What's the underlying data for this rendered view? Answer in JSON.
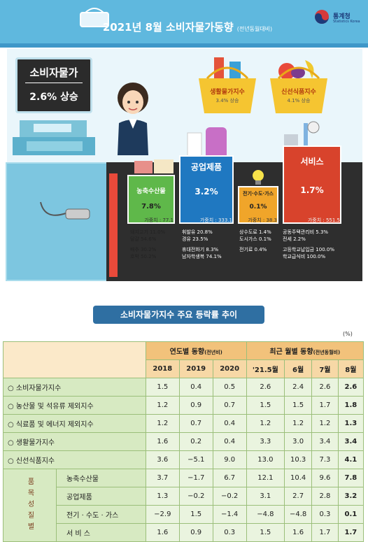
{
  "header": {
    "title": "2021년 8월 소비자물가동향",
    "subtitle": "(전년동월대비)",
    "logo_text": "통계청",
    "logo_sub": "Statistics Korea"
  },
  "cpi": {
    "label": "소비자물가",
    "value": "2.6% 상승"
  },
  "baskets": [
    {
      "label": "생활물가지수",
      "value": "3.4% 상승"
    },
    {
      "label": "신선식품지수",
      "value": "4.1% 상승"
    }
  ],
  "categories": {
    "agri": {
      "title": "농축수산물",
      "value": "7.8%",
      "weight": "가중치 : 77.1",
      "items": [
        "돼지고기 11.0%",
        "달걀 54.6%",
        "배추 30.2%",
        "호박 50.2%"
      ]
    },
    "industrial": {
      "title": "공업제품",
      "value": "3.2%",
      "weight": "가중치 : 333.1",
      "items": [
        "휘발유 20.8%",
        "경유 23.5%",
        "휴대전화기 8.3%",
        "남자학생복 74.1%"
      ]
    },
    "utility": {
      "title": "전기·수도·가스",
      "value": "0.1%",
      "weight": "가중치 : 38.3",
      "items": [
        "상수도료 1.4%",
        "도시가스 0.1%",
        "전기료 0.4%"
      ]
    },
    "service": {
      "title": "서비스",
      "value": "1.7%",
      "weight": "가중치 : 551.5",
      "items": [
        "공동주택관리비 5.3%",
        "전세 2.2%",
        "고등학교납입금 100.0%",
        "학교급식비 100.0%"
      ]
    }
  },
  "section_title": "소비자물가지수 주요 등락률 추이",
  "unit": "(%)",
  "table": {
    "group_header_year": "연도별 동향",
    "group_header_year_note": "(전년비)",
    "group_header_month": "최근 월별 동향",
    "group_header_month_note": "(전년동월비)",
    "columns": [
      "2018",
      "2019",
      "2020",
      "'21.5월",
      "6월",
      "7월",
      "8월"
    ],
    "side_group_label": "품목성질별",
    "rows": [
      {
        "label": "○  소비자물가지수",
        "values": [
          "1.5",
          "0.4",
          "0.5",
          "2.6",
          "2.4",
          "2.6",
          "2.6"
        ]
      },
      {
        "label": "○  농산물 및 석유류 제외지수",
        "values": [
          "1.2",
          "0.9",
          "0.7",
          "1.5",
          "1.5",
          "1.7",
          "1.8"
        ]
      },
      {
        "label": "○  식료품 및 에너지 제외지수",
        "values": [
          "1.2",
          "0.7",
          "0.4",
          "1.2",
          "1.2",
          "1.2",
          "1.3"
        ]
      },
      {
        "label": "○  생활물가지수",
        "values": [
          "1.6",
          "0.2",
          "0.4",
          "3.3",
          "3.0",
          "3.4",
          "3.4"
        ]
      },
      {
        "label": "○  신선식품지수",
        "values": [
          "3.6",
          "−5.1",
          "9.0",
          "13.0",
          "10.3",
          "7.3",
          "4.1"
        ]
      },
      {
        "label": "농축수산물",
        "values": [
          "3.7",
          "−1.7",
          "6.7",
          "12.1",
          "10.4",
          "9.6",
          "7.8"
        ]
      },
      {
        "label": "공업제품",
        "values": [
          "1.3",
          "−0.2",
          "−0.2",
          "3.1",
          "2.7",
          "2.8",
          "3.2"
        ]
      },
      {
        "label": "전기 · 수도 · 가스",
        "values": [
          "−2.9",
          "1.5",
          "−1.4",
          "−4.8",
          "−4.8",
          "0.3",
          "0.1"
        ]
      },
      {
        "label": "서 비 스",
        "values": [
          "1.6",
          "0.9",
          "0.3",
          "1.5",
          "1.6",
          "1.7",
          "1.7"
        ]
      }
    ]
  },
  "colors": {
    "banner": "#5fb8de",
    "agri": "#5fb84a",
    "industrial": "#1f78c1",
    "utility": "#f0a52a",
    "service": "#d8432c",
    "table_header": "#f2c27b",
    "row_label": "#d7eac2"
  }
}
